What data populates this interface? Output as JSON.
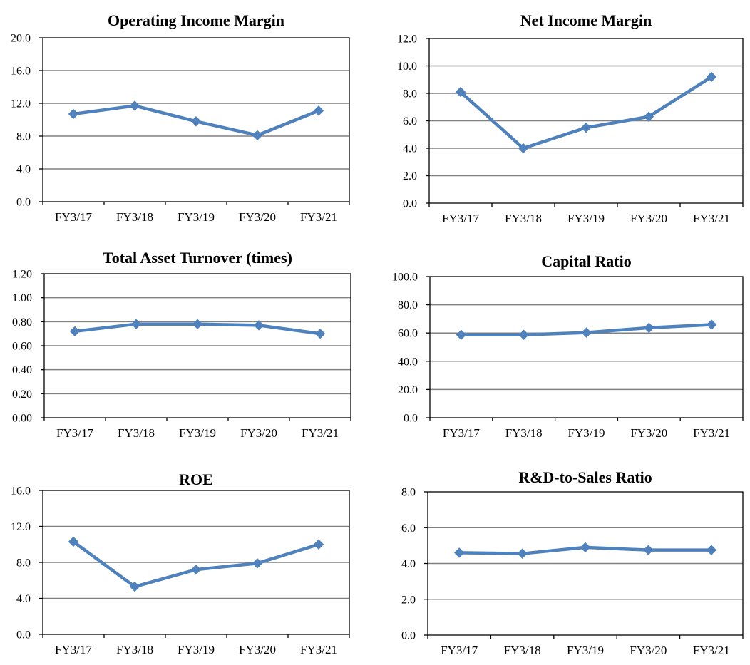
{
  "figure": {
    "line_color": "#4F81BD",
    "grid_color": "#808080"
  },
  "chart_data": [
    {
      "type": "line",
      "title": "Operating Income Margin",
      "categories": [
        "FY3/17",
        "FY3/18",
        "FY3/19",
        "FY3/20",
        "FY3/21"
      ],
      "values": [
        10.7,
        11.7,
        9.8,
        8.1,
        11.1
      ],
      "ylim": [
        0,
        20
      ],
      "yticks": [
        "0.0",
        "4.0",
        "8.0",
        "12.0",
        "16.0",
        "20.0"
      ],
      "grid": true,
      "marker": "diamond"
    },
    {
      "type": "line",
      "title": "Net Income Margin",
      "categories": [
        "FY3/17",
        "FY3/18",
        "FY3/19",
        "FY3/20",
        "FY3/21"
      ],
      "values": [
        8.1,
        4.0,
        5.5,
        6.3,
        9.2
      ],
      "ylim": [
        0,
        12
      ],
      "yticks": [
        "0.0",
        "2.0",
        "4.0",
        "6.0",
        "8.0",
        "10.0",
        "12.0"
      ],
      "grid": true,
      "marker": "diamond"
    },
    {
      "type": "line",
      "title": "Total Asset Turnover (times)",
      "categories": [
        "FY3/17",
        "FY3/18",
        "FY3/19",
        "FY3/20",
        "FY3/21"
      ],
      "values": [
        0.72,
        0.78,
        0.78,
        0.77,
        0.7
      ],
      "ylim": [
        0,
        1.2
      ],
      "yticks": [
        "0.00",
        "0.20",
        "0.40",
        "0.60",
        "0.80",
        "1.00",
        "1.20"
      ],
      "grid": true,
      "marker": "diamond"
    },
    {
      "type": "line",
      "title": "Capital Ratio",
      "categories": [
        "FY3/17",
        "FY3/18",
        "FY3/19",
        "FY3/20",
        "FY3/21"
      ],
      "values": [
        58.7,
        58.7,
        60.3,
        63.7,
        65.9
      ],
      "ylim": [
        0,
        100
      ],
      "yticks": [
        "0.0",
        "20.0",
        "40.0",
        "60.0",
        "80.0",
        "100.0"
      ],
      "grid": true,
      "marker": "diamond"
    },
    {
      "type": "line",
      "title": "ROE",
      "categories": [
        "FY3/17",
        "FY3/18",
        "FY3/19",
        "FY3/20",
        "FY3/21"
      ],
      "values": [
        10.3,
        5.3,
        7.2,
        7.9,
        10.0
      ],
      "ylim": [
        0,
        16
      ],
      "yticks": [
        "0.0",
        "4.0",
        "8.0",
        "12.0",
        "16.0"
      ],
      "grid": true,
      "marker": "diamond"
    },
    {
      "type": "line",
      "title": "R&D-to-Sales Ratio",
      "categories": [
        "FY3/17",
        "FY3/18",
        "FY3/19",
        "FY3/20",
        "FY3/21"
      ],
      "values": [
        4.6,
        4.55,
        4.9,
        4.75,
        4.75
      ],
      "ylim": [
        0,
        8
      ],
      "yticks": [
        "0.0",
        "2.0",
        "4.0",
        "6.0",
        "8.0"
      ],
      "grid": true,
      "marker": "diamond"
    }
  ]
}
